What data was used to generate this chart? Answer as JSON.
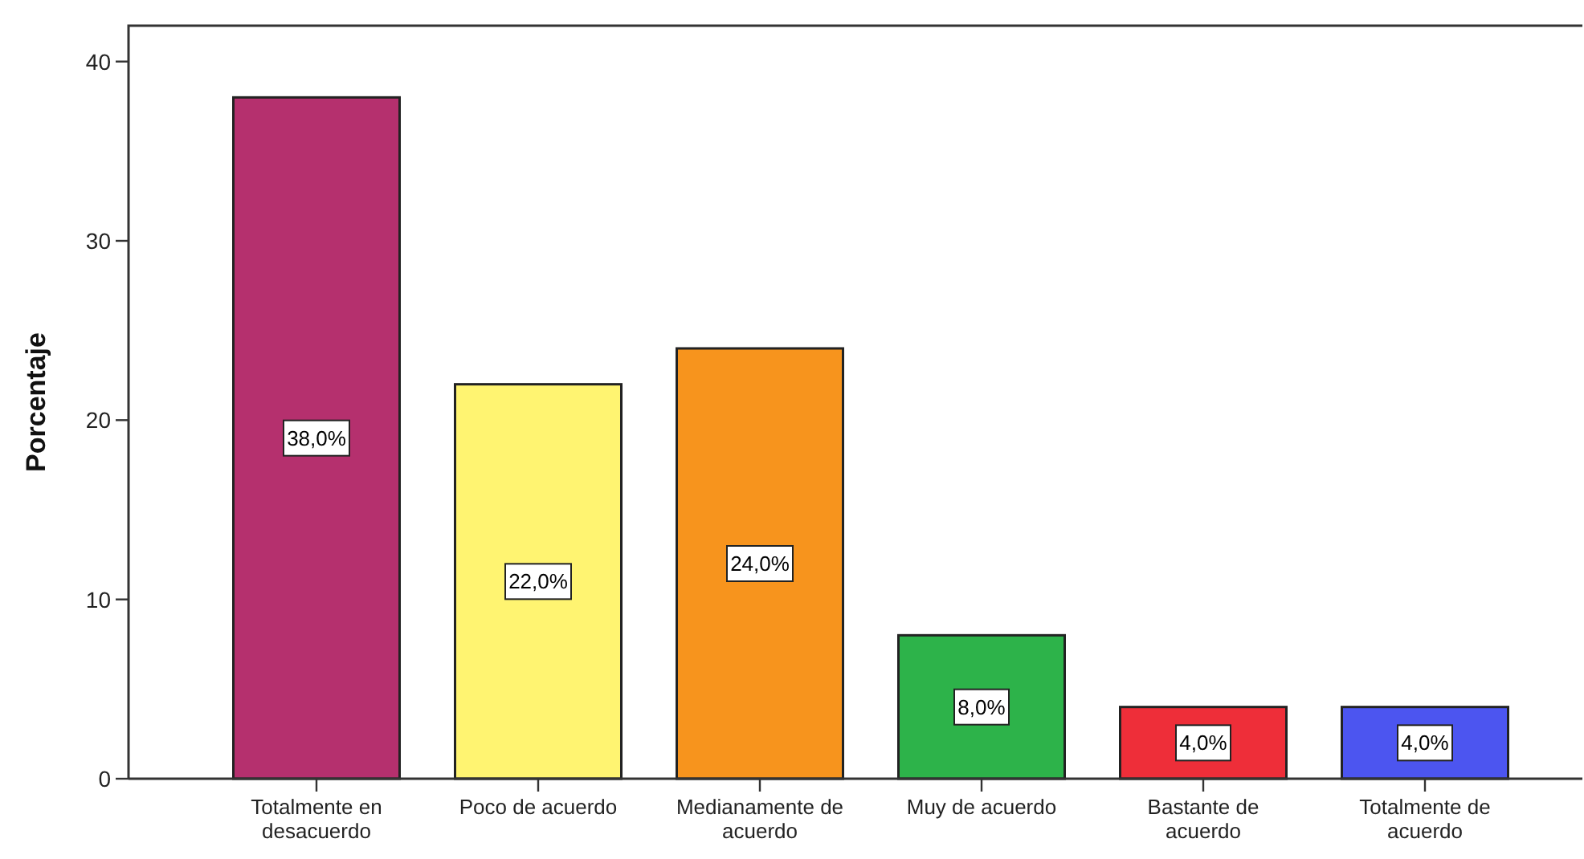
{
  "chart_data": {
    "type": "bar",
    "ylabel": "Porcentaje",
    "categories": [
      "Totalmente en desacuerdo",
      "Poco de acuerdo",
      "Medianamente de acuerdo",
      "Muy de acuerdo",
      "Bastante de acuerdo",
      "Totalmente de acuerdo"
    ],
    "values": [
      38,
      22,
      24,
      8,
      4,
      4
    ],
    "colors": [
      "#b5306e",
      "#fff471",
      "#f7941d",
      "#2db34a",
      "#ee2e39",
      "#4c55f0"
    ],
    "value_labels": [
      "38,0%",
      "22,0%",
      "24,0%",
      "8,0%",
      "4,0%",
      "4,0%"
    ],
    "ylim": [
      0,
      42
    ],
    "yticks": [
      0,
      10,
      20,
      30,
      40
    ]
  }
}
